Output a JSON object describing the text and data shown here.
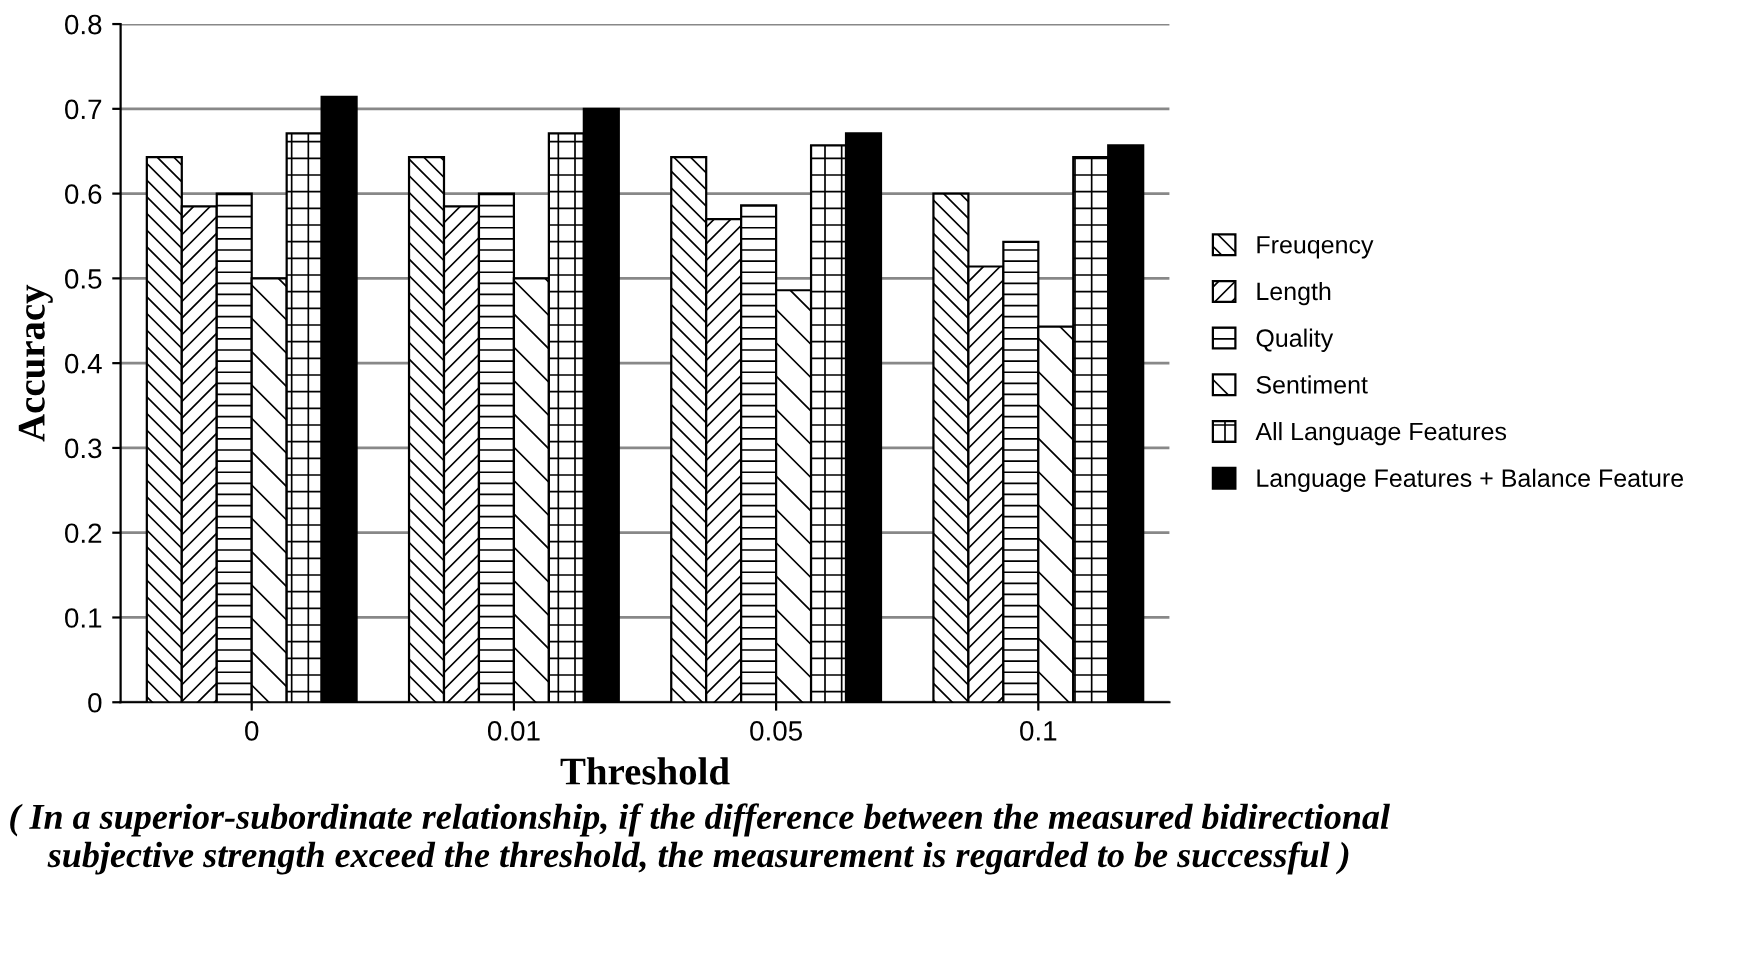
{
  "chart_data": {
    "type": "bar",
    "xlabel": "Threshold",
    "ylabel": "Accuracy",
    "categories": [
      "0",
      "0.01",
      "0.05",
      "0.1"
    ],
    "series": [
      {
        "name": "Freuqency",
        "color": "#000000",
        "values": [
          0.643,
          0.643,
          0.643,
          0.6
        ]
      },
      {
        "name": "Length",
        "color": "#000000",
        "values": [
          0.585,
          0.585,
          0.57,
          0.514
        ]
      },
      {
        "name": "Quality",
        "color": "#000000",
        "values": [
          0.6,
          0.6,
          0.586,
          0.543
        ]
      },
      {
        "name": "Sentiment",
        "color": "#000000",
        "values": [
          0.5,
          0.5,
          0.486,
          0.443
        ]
      },
      {
        "name": "All Language Features",
        "color": "#000000",
        "values": [
          0.671,
          0.671,
          0.657,
          0.643
        ]
      },
      {
        "name": "Language Features + Balance Feature",
        "color": "#000000",
        "values": [
          0.714,
          0.7,
          0.671,
          0.657
        ]
      }
    ],
    "ylim": [
      0,
      0.8
    ],
    "yticks": [
      {
        "value": 0,
        "label": "0"
      },
      0.1,
      0.2,
      0.3,
      0.4,
      0.5,
      0.6,
      0.7,
      0.8
    ],
    "grid": "y",
    "legend": "right",
    "annotations": [
      "( In a superior-subordinate relationship, if the difference between the measured bidirectional subjective strength exceed the threshold, the measurement is regarded to be successful )"
    ]
  }
}
